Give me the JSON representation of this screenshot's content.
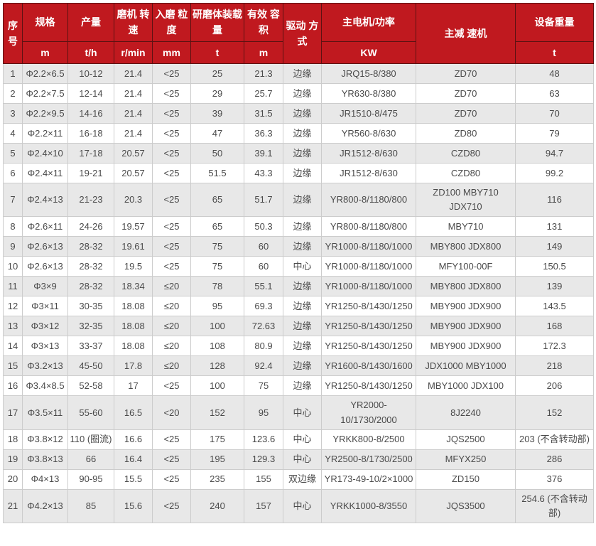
{
  "colors": {
    "header_bg": "#c0191f",
    "header_fg": "#ffffff",
    "header_border": "#5c1212",
    "grid_border": "#cccccc",
    "stripe_bg": "#e8e8e8",
    "row_bg": "#ffffff",
    "body_fg": "#4a4a4a"
  },
  "table": {
    "columns": [
      {
        "label": "序号",
        "unit": null
      },
      {
        "label": "规格",
        "unit": "m"
      },
      {
        "label": "产量",
        "unit": "t/h"
      },
      {
        "label": "磨机 转速",
        "unit": "r/min"
      },
      {
        "label": "入磨 粒度",
        "unit": "mm"
      },
      {
        "label": "研磨体装载量",
        "unit": "t"
      },
      {
        "label": "有效 容积",
        "unit": "m"
      },
      {
        "label": "驱动 方式",
        "unit": null
      },
      {
        "label": "主电机/功率",
        "unit": "KW"
      },
      {
        "label": "主减 速机",
        "unit": null
      },
      {
        "label": "设备重量",
        "unit": "t"
      }
    ],
    "rows": [
      [
        "1",
        "Φ2.2×6.5",
        "10-12",
        "21.4",
        "<25",
        "25",
        "21.3",
        "边缘",
        "JRQ15-8/380",
        "ZD70",
        "48"
      ],
      [
        "2",
        "Φ2.2×7.5",
        "12-14",
        "21.4",
        "<25",
        "29",
        "25.7",
        "边缘",
        "YR630-8/380",
        "ZD70",
        "63"
      ],
      [
        "3",
        "Φ2.2×9.5",
        "14-16",
        "21.4",
        "<25",
        "39",
        "31.5",
        "边缘",
        "JR1510-8/475",
        "ZD70",
        "70"
      ],
      [
        "4",
        "Φ2.2×11",
        "16-18",
        "21.4",
        "<25",
        "47",
        "36.3",
        "边缘",
        "YR560-8/630",
        "ZD80",
        "79"
      ],
      [
        "5",
        "Φ2.4×10",
        "17-18",
        "20.57",
        "<25",
        "50",
        "39.1",
        "边缘",
        "JR1512-8/630",
        "CZD80",
        "94.7"
      ],
      [
        "6",
        "Φ2.4×11",
        "19-21",
        "20.57",
        "<25",
        "51.5",
        "43.3",
        "边缘",
        "JR1512-8/630",
        "CZD80",
        "99.2"
      ],
      [
        "7",
        "Φ2.4×13",
        "21-23",
        "20.3",
        "<25",
        "65",
        "51.7",
        "边缘",
        "YR800-8/1180/800",
        "ZD100 MBY710 JDX710",
        "116"
      ],
      [
        "8",
        "Φ2.6×11",
        "24-26",
        "19.57",
        "<25",
        "65",
        "50.3",
        "边缘",
        "YR800-8/1180/800",
        "MBY710",
        "131"
      ],
      [
        "9",
        "Φ2.6×13",
        "28-32",
        "19.61",
        "<25",
        "75",
        "60",
        "边缘",
        "YR1000-8/1180/1000",
        "MBY800 JDX800",
        "149"
      ],
      [
        "10",
        "Φ2.6×13",
        "28-32",
        "19.5",
        "<25",
        "75",
        "60",
        "中心",
        "YR1000-8/1180/1000",
        "MFY100-00F",
        "150.5"
      ],
      [
        "11",
        "Φ3×9",
        "28-32",
        "18.34",
        "≤20",
        "78",
        "55.1",
        "边缘",
        "YR1000-8/1180/1000",
        "MBY800 JDX800",
        "139"
      ],
      [
        "12",
        "Φ3×11",
        "30-35",
        "18.08",
        "≤20",
        "95",
        "69.3",
        "边缘",
        "YR1250-8/1430/1250",
        "MBY900 JDX900",
        "143.5"
      ],
      [
        "13",
        "Φ3×12",
        "32-35",
        "18.08",
        "≤20",
        "100",
        "72.63",
        "边缘",
        "YR1250-8/1430/1250",
        "MBY900 JDX900",
        "168"
      ],
      [
        "14",
        "Φ3×13",
        "33-37",
        "18.08",
        "≤20",
        "108",
        "80.9",
        "边缘",
        "YR1250-8/1430/1250",
        "MBY900 JDX900",
        "172.3"
      ],
      [
        "15",
        "Φ3.2×13",
        "45-50",
        "17.8",
        "≤20",
        "128",
        "92.4",
        "边缘",
        "YR1600-8/1430/1600",
        "JDX1000 MBY1000",
        "218"
      ],
      [
        "16",
        "Φ3.4×8.5",
        "52-58",
        "17",
        "<25",
        "100",
        "75",
        "边缘",
        "YR1250-8/1430/1250",
        "MBY1000 JDX100",
        "206"
      ],
      [
        "17",
        "Φ3.5×11",
        "55-60",
        "16.5",
        "<20",
        "152",
        "95",
        "中心",
        "YR2000-10/1730/2000",
        "8J2240",
        "152"
      ],
      [
        "18",
        "Φ3.8×12",
        "110 (圈流)",
        "16.6",
        "<25",
        "175",
        "123.6",
        "中心",
        "YRKK800-8/2500",
        "JQS2500",
        "203 (不含转动部)"
      ],
      [
        "19",
        "Φ3.8×13",
        "66",
        "16.4",
        "<25",
        "195",
        "129.3",
        "中心",
        "YR2500-8/1730/2500",
        "MFYX250",
        "286"
      ],
      [
        "20",
        "Φ4×13",
        "90-95",
        "15.5",
        "<25",
        "235",
        "155",
        "双边缘",
        "YR173-49-10/2×1000",
        "ZD150",
        "376"
      ],
      [
        "21",
        "Φ4.2×13",
        "85",
        "15.6",
        "<25",
        "240",
        "157",
        "中心",
        "YRKK1000-8/3550",
        "JQS3500",
        "254.6 (不含转动部)"
      ]
    ]
  }
}
